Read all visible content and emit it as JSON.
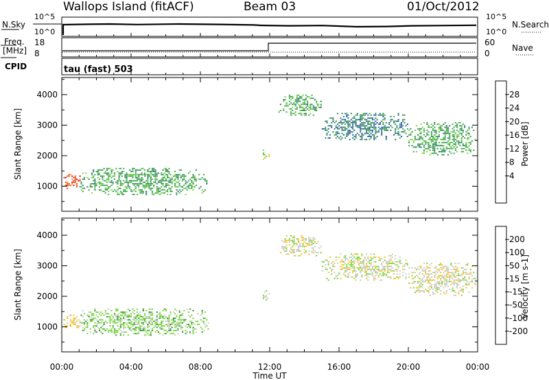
{
  "header": {
    "station": "Wallops Island (fitACF)",
    "beam": "Beam 03",
    "date": "01/Oct/2012"
  },
  "strip": {
    "nsky_label": "N.Sky",
    "nsearch_label": "N.Search",
    "freq_label_1": "Freq.",
    "freq_label_2": "[MHz]",
    "nave_label": "Nave",
    "cpid_label": "CPID",
    "cpid_text": "tau (fast) 503",
    "noise_ticks_left": [
      "10^5",
      "10^0"
    ],
    "noise_ticks_right": [
      "10^5",
      "10^0"
    ],
    "freq_ticks": [
      "18",
      "8"
    ],
    "nave_ticks": [
      "60",
      "0"
    ]
  },
  "colorbars": {
    "power_label": "Power [dB]",
    "velocity_label": "Velocity [m s-1]",
    "power_ticks": [
      "28",
      "24",
      "20",
      "16",
      "12",
      "8",
      "4"
    ],
    "velocity_ticks": [
      "200",
      "100",
      "50",
      "15",
      "-15",
      "-50",
      "-100",
      "-200"
    ],
    "power_colors": [
      "#0000e6",
      "#1f4fb5",
      "#2f7a6a",
      "#3aa64a",
      "#6fd42f",
      "#f5c21a",
      "#f58a16",
      "#e84a10",
      "#e00000"
    ],
    "velocity_colors": [
      "#e00000",
      "#f04a10",
      "#f58a16",
      "#f5c21a",
      "#c8c8c0",
      "#6fd42f",
      "#2f8a3a",
      "#1f4fb5",
      "#1a2fb0"
    ]
  },
  "chart_data": [
    {
      "type": "heatmap",
      "title": "Power",
      "xlabel": "Time UT",
      "ylabel": "Slant Range [km]",
      "x_ticks": [
        "00:00",
        "04:00",
        "08:00",
        "12:00",
        "16:00",
        "20:00",
        "00:00"
      ],
      "y_ticks": [
        1000,
        2000,
        3000,
        4000
      ],
      "xlim_hours": [
        0,
        24
      ],
      "ylim_km": [
        180,
        4560
      ],
      "colorbar": "power",
      "echo_regions": [
        {
          "t0": 0.1,
          "t1": 1.1,
          "r0": 900,
          "r1": 1400,
          "level": "28"
        },
        {
          "t0": 1.0,
          "t1": 8.5,
          "r0": 700,
          "r1": 1600,
          "level": "12"
        },
        {
          "t0": 11.6,
          "t1": 12.0,
          "r0": 1800,
          "r1": 2200,
          "level": "16"
        },
        {
          "t0": 12.5,
          "t1": 15.0,
          "r0": 3300,
          "r1": 4000,
          "level": "12"
        },
        {
          "t0": 15.0,
          "t1": 20.0,
          "r0": 2500,
          "r1": 3400,
          "level": "8"
        },
        {
          "t0": 20.0,
          "t1": 23.9,
          "r0": 2000,
          "r1": 3100,
          "level": "12"
        }
      ]
    },
    {
      "type": "heatmap",
      "title": "Velocity",
      "xlabel": "Time UT",
      "ylabel": "Slant Range [km]",
      "x_ticks": [
        "00:00",
        "04:00",
        "08:00",
        "12:00",
        "16:00",
        "20:00",
        "00:00"
      ],
      "y_ticks": [
        1000,
        2000,
        3000,
        4000
      ],
      "xlim_hours": [
        0,
        24
      ],
      "ylim_km": [
        180,
        4560
      ],
      "colorbar": "velocity",
      "echo_regions": [
        {
          "t0": 0.1,
          "t1": 1.1,
          "r0": 900,
          "r1": 1400,
          "level": "-15"
        },
        {
          "t0": 1.0,
          "t1": 8.5,
          "r0": 700,
          "r1": 1600,
          "level": "50"
        },
        {
          "t0": 11.6,
          "t1": 12.0,
          "r0": 1800,
          "r1": 2200,
          "level": "15"
        },
        {
          "t0": 12.5,
          "t1": 15.0,
          "r0": 3300,
          "r1": 4000,
          "level": "15"
        },
        {
          "t0": 15.0,
          "t1": 20.0,
          "r0": 2500,
          "r1": 3400,
          "level": "15"
        },
        {
          "t0": 20.0,
          "t1": 23.9,
          "r0": 2000,
          "r1": 3100,
          "level": "15"
        }
      ]
    }
  ]
}
